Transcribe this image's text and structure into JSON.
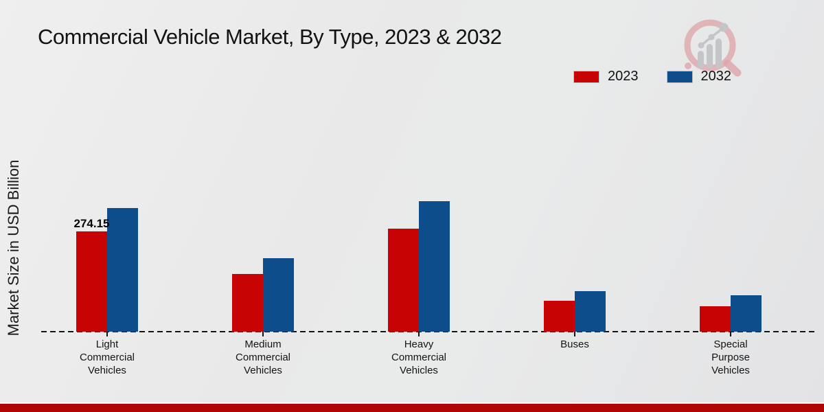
{
  "page": {
    "title": "Commercial Vehicle Market, By Type, 2023 & 2032",
    "y_axis_label": "Market Size in USD Billion"
  },
  "legend": [
    {
      "label": "2023",
      "color": "#c80303"
    },
    {
      "label": "2032",
      "color": "#0e4d8c"
    }
  ],
  "colors": {
    "series_2023": "#c80303",
    "series_2032": "#0e4d8c",
    "footer_band": "#b00505",
    "background": "#e9e9ea",
    "axis": "#141414"
  },
  "branding": {
    "logo_icon": "magnifier-bar-chart-logo"
  },
  "chart_data": {
    "type": "bar",
    "title": "Commercial Vehicle Market, By Type, 2023 & 2032",
    "xlabel": "",
    "ylabel": "Market Size in USD Billion",
    "categories": [
      "Light Commercial Vehicles",
      "Medium Commercial Vehicles",
      "Heavy Commercial Vehicles",
      "Buses",
      "Special Purpose Vehicles"
    ],
    "series": [
      {
        "name": "2023",
        "color": "#c80303",
        "values": [
          274.15,
          158,
          282,
          85,
          69
        ]
      },
      {
        "name": "2032",
        "color": "#0e4d8c",
        "values": [
          338,
          201,
          357,
          111,
          100
        ]
      }
    ],
    "bar_label": {
      "series_index": 0,
      "category_index": 0,
      "text": "274.15"
    },
    "ylim": [
      0,
      420
    ],
    "grid": false,
    "y_ticks_visible": false,
    "baseline_style": "dashed",
    "legend_position": "top-right"
  }
}
